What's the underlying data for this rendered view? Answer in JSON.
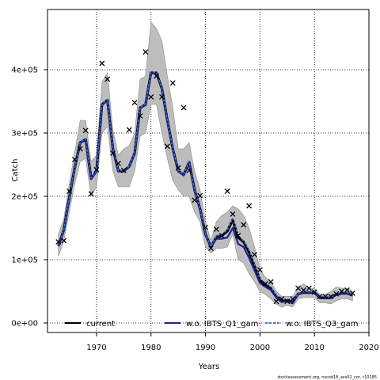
{
  "chart_data": {
    "type": "line",
    "xlabel": "Years",
    "ylabel": "Catch",
    "xlim": [
      1961,
      2020
    ],
    "ylim": [
      -15000,
      495000
    ],
    "x_ticks": [
      1970,
      1980,
      1990,
      2000,
      2010,
      2020
    ],
    "y_ticks": [
      0,
      100000,
      200000,
      300000,
      400000
    ],
    "y_tick_labels": [
      "0e+00",
      "1e+05",
      "2e+05",
      "3e+05",
      "4e+05"
    ],
    "grid": true,
    "legend_position": "bottom",
    "legend": [
      {
        "label": "current",
        "color": "#000000",
        "style": "solid"
      },
      {
        "label": "w.o. IBTS_Q1_gam",
        "color": "#1f1f8f",
        "style": "solid"
      },
      {
        "label": "w.o. IBTS_Q3_gam",
        "color": "#3a7bd5",
        "style": "dashed"
      }
    ],
    "confidence_band": {
      "color": "#bdbdbd",
      "x": [
        1963,
        1964,
        1965,
        1966,
        1967,
        1968,
        1969,
        1970,
        1971,
        1972,
        1973,
        1974,
        1975,
        1976,
        1977,
        1978,
        1979,
        1980,
        1981,
        1982,
        1983,
        1984,
        1985,
        1986,
        1987,
        1988,
        1989,
        1990,
        1991,
        1992,
        1993,
        1994,
        1995,
        1996,
        1997,
        1998,
        1999,
        2000,
        2001,
        2002,
        2003,
        2004,
        2005,
        2006,
        2007,
        2008,
        2009,
        2010,
        2011,
        2012,
        2013,
        2014,
        2015,
        2016,
        2017
      ],
      "lower": [
        105000,
        130000,
        175000,
        220000,
        255000,
        260000,
        200000,
        215000,
        300000,
        310000,
        240000,
        215000,
        215000,
        215000,
        240000,
        295000,
        300000,
        345000,
        345000,
        300000,
        260000,
        225000,
        210000,
        200000,
        200000,
        175000,
        160000,
        120000,
        110000,
        118000,
        118000,
        120000,
        140000,
        100000,
        95000,
        78000,
        65000,
        50000,
        45000,
        38000,
        30000,
        25000,
        28000,
        25000,
        38000,
        40000,
        40000,
        40000,
        32000,
        32000,
        30000,
        35000,
        38000,
        38000,
        35000
      ],
      "upper": [
        140000,
        165000,
        220000,
        270000,
        320000,
        320000,
        255000,
        265000,
        380000,
        395000,
        305000,
        265000,
        275000,
        280000,
        300000,
        385000,
        390000,
        475000,
        465000,
        445000,
        390000,
        340000,
        275000,
        275000,
        285000,
        240000,
        210000,
        160000,
        130000,
        160000,
        170000,
        175000,
        185000,
        180000,
        170000,
        150000,
        120000,
        85000,
        72000,
        65000,
        50000,
        42000,
        42000,
        42000,
        55000,
        62000,
        55000,
        55000,
        45000,
        45000,
        50000,
        57000,
        55000,
        55000,
        50000
      ]
    },
    "series": [
      {
        "name": "current",
        "x": [
          1963,
          1964,
          1965,
          1966,
          1967,
          1968,
          1969,
          1970,
          1971,
          1972,
          1973,
          1974,
          1975,
          1976,
          1977,
          1978,
          1979,
          1980,
          1981,
          1982,
          1983,
          1984,
          1985,
          1986,
          1987,
          1988,
          1989,
          1990,
          1991,
          1992,
          1993,
          1994,
          1995,
          1996,
          1997,
          1998,
          1999,
          2000,
          2001,
          2002,
          2003,
          2004,
          2005,
          2006,
          2007,
          2008,
          2009,
          2010,
          2011,
          2012,
          2013,
          2014,
          2015,
          2016,
          2017
        ],
        "y": [
          122000,
          147000,
          198000,
          245000,
          285000,
          290000,
          228000,
          240000,
          345000,
          352000,
          275000,
          240000,
          240000,
          247000,
          268000,
          340000,
          345000,
          395000,
          395000,
          370000,
          320000,
          275000,
          240000,
          234000,
          254000,
          210000,
          180000,
          140000,
          120000,
          136000,
          138000,
          145000,
          163000,
          135000,
          128000,
          112000,
          90000,
          68000,
          60000,
          55000,
          42000,
          35000,
          36000,
          33000,
          46000,
          48000,
          48000,
          48000,
          40000,
          40000,
          40000,
          45000,
          47000,
          47000,
          44000
        ]
      },
      {
        "name": "w.o. IBTS_Q1_gam",
        "x": [
          1963,
          1964,
          1965,
          1966,
          1967,
          1968,
          1969,
          1970,
          1971,
          1972,
          1973,
          1974,
          1975,
          1976,
          1977,
          1978,
          1979,
          1980,
          1981,
          1982,
          1983,
          1984,
          1985,
          1986,
          1987,
          1988,
          1989,
          1990,
          1991,
          1992,
          1993,
          1994,
          1995,
          1996,
          1997,
          1998,
          1999,
          2000,
          2001,
          2002,
          2003,
          2004,
          2005,
          2006,
          2007,
          2008,
          2009,
          2010,
          2011,
          2012,
          2013,
          2014,
          2015,
          2016,
          2017
        ],
        "y": [
          121000,
          146000,
          197000,
          244000,
          284000,
          289000,
          227000,
          239000,
          344000,
          351000,
          274000,
          239000,
          239000,
          246000,
          267000,
          339000,
          344000,
          394000,
          394000,
          369000,
          319000,
          274000,
          239000,
          233000,
          253000,
          209000,
          179000,
          139000,
          119000,
          133000,
          133000,
          135000,
          150000,
          125000,
          120000,
          103000,
          83000,
          63000,
          57000,
          52000,
          40000,
          33000,
          34000,
          31000,
          45000,
          48000,
          48000,
          47000,
          39000,
          39000,
          39000,
          44000,
          46000,
          46000,
          43000
        ]
      },
      {
        "name": "w.o. IBTS_Q3_gam",
        "x": [
          1963,
          1964,
          1965,
          1966,
          1967,
          1968,
          1969,
          1970,
          1971,
          1972,
          1973,
          1974,
          1975,
          1976,
          1977,
          1978,
          1979,
          1980,
          1981,
          1982,
          1983,
          1984,
          1985,
          1986,
          1987,
          1988,
          1989,
          1990,
          1991,
          1992,
          1993,
          1994,
          1995,
          1996,
          1997,
          1998,
          1999,
          2000,
          2001,
          2002,
          2003,
          2004,
          2005,
          2006,
          2007,
          2008,
          2009,
          2010,
          2011,
          2012,
          2013,
          2014,
          2015,
          2016,
          2017
        ],
        "y": [
          123000,
          148000,
          199000,
          246000,
          286000,
          291000,
          229000,
          241000,
          346000,
          353000,
          276000,
          241000,
          241000,
          248000,
          269000,
          341000,
          346000,
          396000,
          396000,
          371000,
          321000,
          276000,
          241000,
          235000,
          255000,
          211000,
          181000,
          141000,
          121000,
          138000,
          140000,
          147000,
          165000,
          138000,
          130000,
          115000,
          92000,
          70000,
          62000,
          57000,
          44000,
          37000,
          38000,
          35000,
          47000,
          50000,
          50000,
          49000,
          41000,
          41000,
          41000,
          46000,
          48000,
          48000,
          45000
        ]
      }
    ],
    "observations": {
      "marker": "x",
      "x": [
        1963,
        1964,
        1965,
        1966,
        1967,
        1968,
        1969,
        1970,
        1971,
        1972,
        1973,
        1974,
        1975,
        1976,
        1977,
        1978,
        1979,
        1980,
        1981,
        1982,
        1983,
        1984,
        1985,
        1986,
        1987,
        1988,
        1989,
        1990,
        1991,
        1992,
        1993,
        1994,
        1995,
        1996,
        1997,
        1998,
        1999,
        2000,
        2001,
        2002,
        2003,
        2004,
        2005,
        2006,
        2007,
        2008,
        2009,
        2010,
        2011,
        2012,
        2013,
        2014,
        2015,
        2016,
        2017
      ],
      "y": [
        128000,
        130000,
        208000,
        258000,
        275000,
        304000,
        204000,
        242000,
        410000,
        385000,
        268000,
        252000,
        241000,
        305000,
        348000,
        327000,
        428000,
        357000,
        390000,
        357000,
        279000,
        379000,
        245000,
        340000,
        241000,
        194000,
        201000,
        151000,
        118000,
        148000,
        138000,
        208000,
        172000,
        138000,
        155000,
        185000,
        108000,
        84000,
        62000,
        65000,
        34000,
        38000,
        34000,
        38000,
        55000,
        52000,
        55000,
        49000,
        42000,
        42000,
        42000,
        46000,
        50000,
        52000,
        47000
      ]
    },
    "credit": "stockassessment.org, nscod18_ass02_cor, r10185"
  }
}
